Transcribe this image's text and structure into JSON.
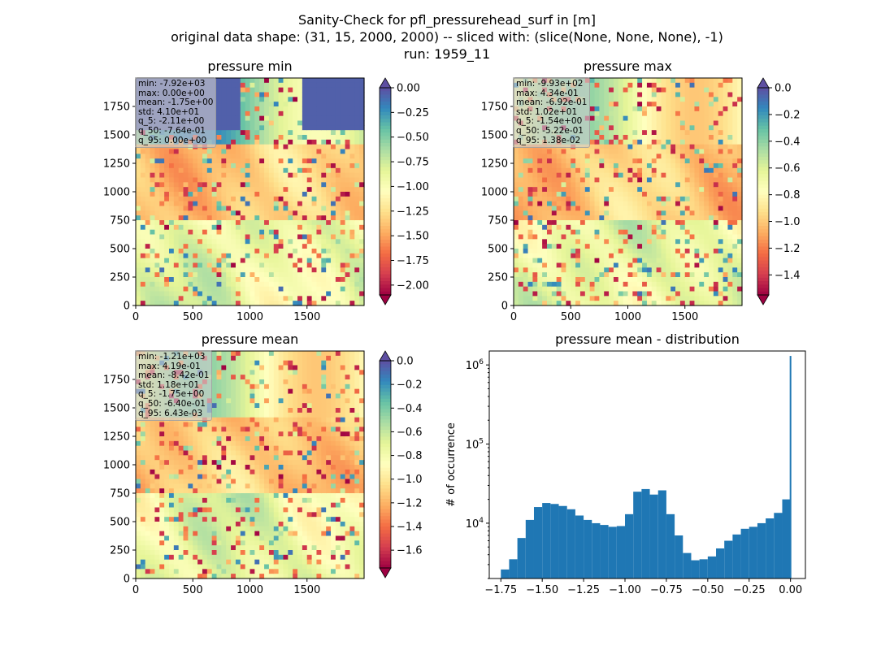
{
  "figure": {
    "title_lines": [
      "Sanity-Check for pfl_pressurehead_surf in [m]",
      "original data shape: (31, 15, 2000, 2000) -- sliced with: (slice(None, None, None), -1)",
      "run: 1959_11"
    ]
  },
  "chart_data": [
    {
      "type": "heatmap",
      "title": "pressure min",
      "colormap": "Spectral",
      "x_ticks": [
        "0",
        "500",
        "1000",
        "1500"
      ],
      "y_ticks": [
        "0",
        "250",
        "500",
        "750",
        "1000",
        "1250",
        "1500",
        "1750"
      ],
      "xlim": [
        0,
        2000
      ],
      "ylim": [
        0,
        2000
      ],
      "colorbar": {
        "range": [
          -2.1,
          0.0
        ],
        "ticks": [
          "0.00",
          "−0.25",
          "−0.50",
          "−0.75",
          "−1.00",
          "−1.25",
          "−1.50",
          "−1.75",
          "−2.00"
        ],
        "tick_values": [
          0,
          -0.25,
          -0.5,
          -0.75,
          -1.0,
          -1.25,
          -1.5,
          -1.75,
          -2.0
        ],
        "extend": "both"
      },
      "stats": [
        "min: -7.92e+03",
        "max: 0.00e+00",
        "mean: -1.75e+00",
        "std: 4.10e+01",
        "q_5: -2.11e+00",
        "q_50: -7.64e-01",
        "q_95: 0.00e+00"
      ]
    },
    {
      "type": "heatmap",
      "title": "pressure max",
      "colormap": "Spectral",
      "x_ticks": [
        "0",
        "500",
        "1000",
        "1500"
      ],
      "y_ticks": [
        "0",
        "250",
        "500",
        "750",
        "1000",
        "1250",
        "1500",
        "1750"
      ],
      "xlim": [
        0,
        2000
      ],
      "ylim": [
        0,
        2000
      ],
      "colorbar": {
        "range": [
          -1.55,
          0.0
        ],
        "ticks": [
          "0.0",
          "−0.2",
          "−0.4",
          "−0.6",
          "−0.8",
          "−1.0",
          "−1.2",
          "−1.4"
        ],
        "tick_values": [
          0,
          -0.2,
          -0.4,
          -0.6,
          -0.8,
          -1.0,
          -1.2,
          -1.4
        ],
        "extend": "both"
      },
      "stats": [
        "min: -9.93e+02",
        "max: 4.34e-01",
        "mean: -6.92e-01",
        "std: 1.02e+01",
        "q_5: -1.54e+00",
        "q_50: -5.22e-01",
        "q_95: 1.38e-02"
      ]
    },
    {
      "type": "heatmap",
      "title": "pressure mean",
      "colormap": "Spectral",
      "x_ticks": [
        "0",
        "500",
        "1000",
        "1500"
      ],
      "y_ticks": [
        "0",
        "250",
        "500",
        "750",
        "1000",
        "1250",
        "1500",
        "1750"
      ],
      "xlim": [
        0,
        2000
      ],
      "ylim": [
        0,
        2000
      ],
      "colorbar": {
        "range": [
          -1.75,
          0.0
        ],
        "ticks": [
          "0.0",
          "−0.2",
          "−0.4",
          "−0.6",
          "−0.8",
          "−1.0",
          "−1.2",
          "−1.4",
          "−1.6"
        ],
        "tick_values": [
          0,
          -0.2,
          -0.4,
          -0.6,
          -0.8,
          -1.0,
          -1.2,
          -1.4,
          -1.6
        ],
        "extend": "both"
      },
      "stats": [
        "min: -1.21e+03",
        "max: 4.19e-01",
        "mean: -8.42e-01",
        "std: 1.18e+01",
        "q_5: -1.75e+00",
        "q_50: -6.40e-01",
        "q_95: 6.43e-03"
      ]
    },
    {
      "type": "bar",
      "title": "pressure mean - distribution",
      "ylabel": "# of occurrence",
      "xlabel": "",
      "yscale": "log",
      "color": "#1f77b4",
      "xlim": [
        -1.82,
        0.09
      ],
      "ylim": [
        2000,
        1500000
      ],
      "x_ticks": [
        "−1.75",
        "−1.50",
        "−1.25",
        "−1.00",
        "−0.75",
        "−0.50",
        "−0.25",
        "0.00"
      ],
      "x_tick_values": [
        -1.75,
        -1.5,
        -1.25,
        -1.0,
        -0.75,
        -0.5,
        -0.25,
        0.0
      ],
      "y_ticks": [
        "10^4",
        "10^5",
        "10^6"
      ],
      "y_tick_values": [
        10000,
        100000,
        1000000
      ],
      "bins": [
        -1.75,
        -1.7,
        -1.65,
        -1.6,
        -1.55,
        -1.5,
        -1.45,
        -1.4,
        -1.35,
        -1.3,
        -1.25,
        -1.2,
        -1.15,
        -1.1,
        -1.05,
        -1.0,
        -0.95,
        -0.9,
        -0.85,
        -0.8,
        -0.75,
        -0.7,
        -0.65,
        -0.6,
        -0.55,
        -0.5,
        -0.45,
        -0.4,
        -0.35,
        -0.3,
        -0.25,
        -0.2,
        -0.15,
        -0.1,
        -0.05,
        0.0
      ],
      "counts": [
        2600,
        3500,
        6500,
        11000,
        16000,
        18000,
        17500,
        16500,
        15000,
        12500,
        11000,
        10000,
        9500,
        9000,
        9200,
        13000,
        25000,
        27000,
        23000,
        26000,
        13000,
        7000,
        4200,
        3400,
        3500,
        3800,
        4800,
        6000,
        7200,
        8500,
        9000,
        10000,
        11500,
        13500,
        20000,
        1300000
      ]
    }
  ]
}
